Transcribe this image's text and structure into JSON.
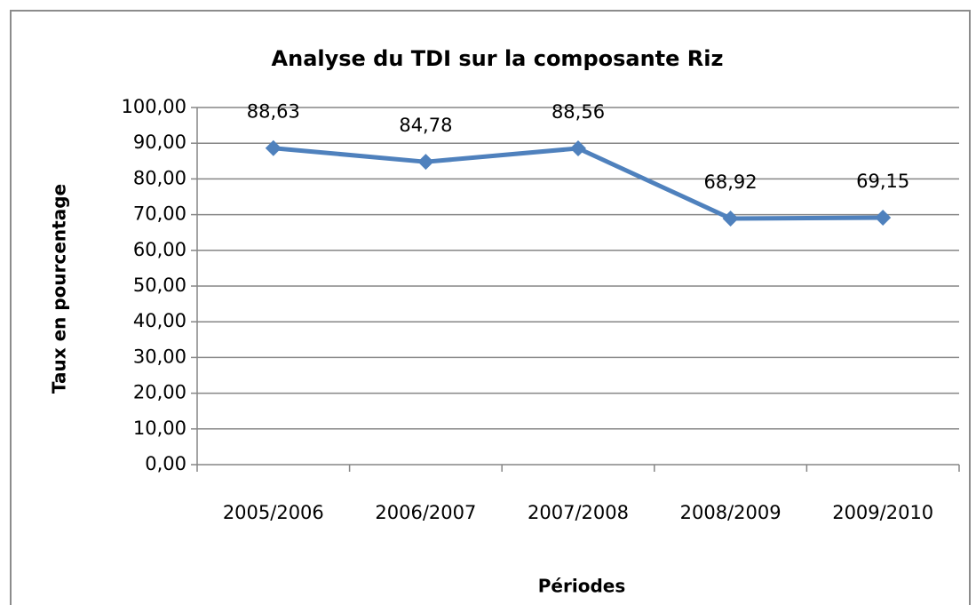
{
  "chart_data": {
    "type": "line",
    "title": "Analyse du TDI sur la composante Riz",
    "x_label": "Périodes",
    "y_label": "Taux en pourcentage",
    "categories": [
      "2005/2006",
      "2006/2007",
      "2007/2008",
      "2008/2009",
      "2009/2010"
    ],
    "series": [
      {
        "name": "TDI",
        "color": "#4f81bd",
        "values": [
          88.63,
          84.78,
          88.56,
          68.92,
          69.15
        ],
        "value_labels": [
          "88,63",
          "84,78",
          "88,56",
          "68,92",
          "69,15"
        ]
      }
    ],
    "ylim": [
      0,
      100
    ],
    "yticks": [
      {
        "value": 0,
        "label": "0,00"
      },
      {
        "value": 10,
        "label": "10,00"
      },
      {
        "value": 20,
        "label": "20,00"
      },
      {
        "value": 30,
        "label": "30,00"
      },
      {
        "value": 40,
        "label": "40,00"
      },
      {
        "value": 50,
        "label": "50,00"
      },
      {
        "value": 60,
        "label": "60,00"
      },
      {
        "value": 70,
        "label": "70,00"
      },
      {
        "value": 80,
        "label": "80,00"
      },
      {
        "value": 90,
        "label": "90,00"
      },
      {
        "value": 100,
        "label": "100,00"
      }
    ],
    "grid": true
  }
}
